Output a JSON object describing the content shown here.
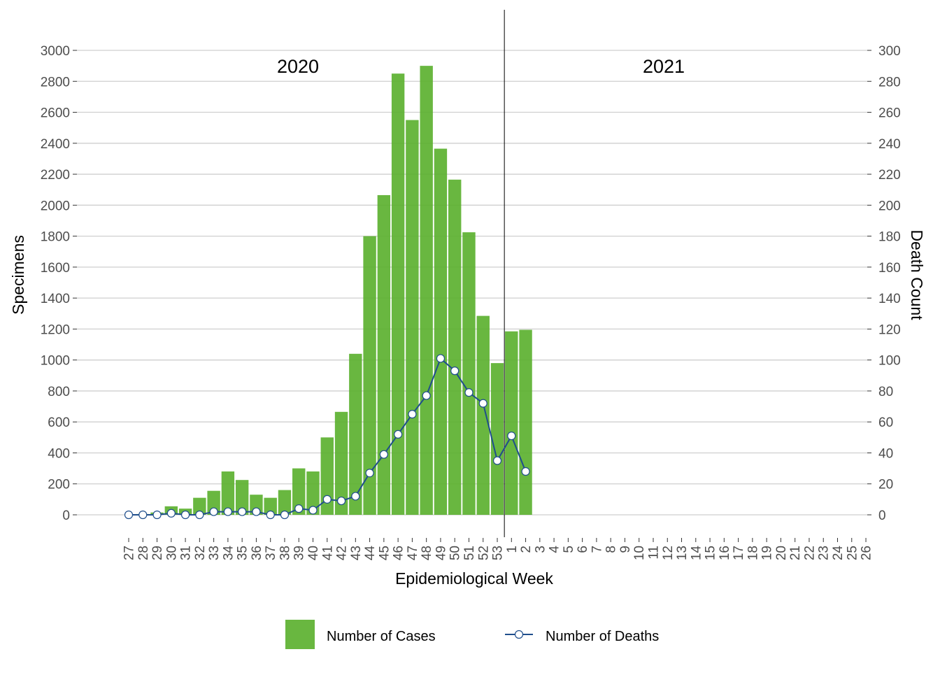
{
  "chart_data": {
    "type": "bar",
    "title": "",
    "xlabel": "Epidemiological Week",
    "ylabel": "Specimens",
    "y2label": "Death Count",
    "categories": [
      "27",
      "28",
      "29",
      "30",
      "31",
      "32",
      "33",
      "34",
      "35",
      "36",
      "37",
      "38",
      "39",
      "40",
      "41",
      "42",
      "43",
      "44",
      "45",
      "46",
      "47",
      "48",
      "49",
      "50",
      "51",
      "52",
      "53",
      "1",
      "2",
      "3",
      "4",
      "5",
      "6",
      "7",
      "8",
      "9",
      "10",
      "11",
      "12",
      "13",
      "14",
      "15",
      "16",
      "17",
      "18",
      "19",
      "20",
      "21",
      "22",
      "23",
      "24",
      "25",
      "26"
    ],
    "ylim": [
      0,
      3000
    ],
    "y2lim": [
      0,
      300
    ],
    "yticks": [
      0,
      200,
      400,
      600,
      800,
      1000,
      1200,
      1400,
      1600,
      1800,
      2000,
      2200,
      2400,
      2600,
      2800,
      3000
    ],
    "y2ticks": [
      0,
      20,
      40,
      60,
      80,
      100,
      120,
      140,
      160,
      180,
      200,
      220,
      240,
      260,
      280,
      300
    ],
    "grid": true,
    "legend_position": "bottom",
    "year_labels": [
      {
        "text": "2020",
        "weeks": "27-53"
      },
      {
        "text": "2021",
        "weeks": "1-26"
      }
    ],
    "year_divider_between": [
      "53",
      "1"
    ],
    "series": [
      {
        "name": "Number of Cases",
        "type": "bar",
        "axis": "left",
        "color": "#5cb130",
        "values": [
          0,
          5,
          15,
          55,
          40,
          110,
          155,
          280,
          225,
          130,
          110,
          160,
          300,
          280,
          500,
          665,
          1040,
          1800,
          2065,
          2850,
          2550,
          2900,
          2365,
          2165,
          1825,
          1285,
          980,
          1185,
          1195,
          null,
          null,
          null,
          null,
          null,
          null,
          null,
          null,
          null,
          null,
          null,
          null,
          null,
          null,
          null,
          null,
          null,
          null,
          null,
          null,
          null,
          null,
          null,
          null
        ]
      },
      {
        "name": "Number of Deaths",
        "type": "line",
        "axis": "right",
        "color": "#1f4e8c",
        "marker_fill": "#ffffff",
        "values": [
          0,
          0,
          0,
          1,
          0,
          0,
          2,
          2,
          2,
          2,
          0,
          0,
          4,
          3,
          10,
          9,
          12,
          27,
          39,
          52,
          65,
          77,
          101,
          93,
          79,
          72,
          35,
          51,
          28,
          null,
          null,
          null,
          null,
          null,
          null,
          null,
          null,
          null,
          null,
          null,
          null,
          null,
          null,
          null,
          null,
          null,
          null,
          null,
          null,
          null,
          null,
          null,
          null
        ]
      }
    ]
  }
}
